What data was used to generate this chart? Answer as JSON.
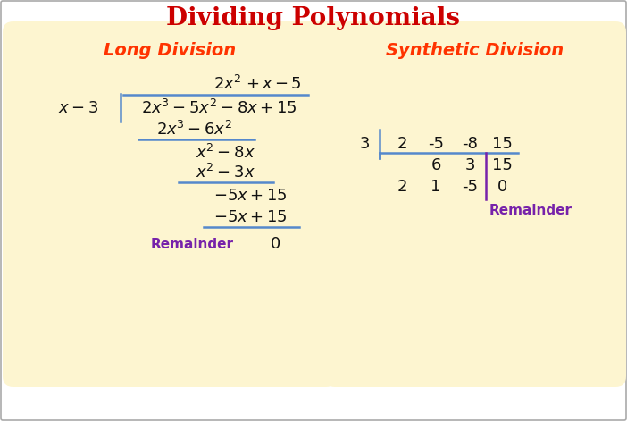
{
  "title": "Dividing Polynomials",
  "title_color": "#cc0000",
  "title_fontsize": 20,
  "bg_color": "#ffffff",
  "panel_color": "#fdf5d0",
  "panel_edge_color": "#d4c060",
  "left_label": "Long Division",
  "right_label": "Synthetic Division",
  "label_color": "#ff3300",
  "label_fontsize": 14,
  "math_color": "#111111",
  "blue_color": "#5588cc",
  "purple_color": "#7722aa",
  "math_fontsize": 13,
  "fig_width": 7.02,
  "fig_height": 4.71,
  "dpi": 100
}
